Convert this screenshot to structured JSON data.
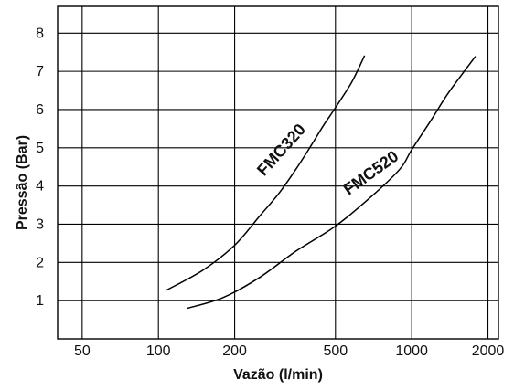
{
  "chart_data": {
    "type": "line",
    "title": "",
    "xlabel": "Vazão (l/min)",
    "ylabel": "Pressão (Bar)",
    "xscale": "log",
    "xlim": [
      40,
      2200
    ],
    "ylim": [
      0,
      8.7
    ],
    "grid": true,
    "xticks": [
      50,
      100,
      200,
      500,
      1000,
      2000
    ],
    "xtick_labels": [
      "50",
      "100",
      "200",
      "500",
      "1000",
      "2000"
    ],
    "yticks": [
      1,
      2,
      3,
      4,
      5,
      6,
      7,
      8
    ],
    "ytick_labels": [
      "1",
      "2",
      "3",
      "4",
      "5",
      "6",
      "7",
      "8"
    ],
    "series": [
      {
        "name": "FMC320",
        "color": "#000000",
        "points": [
          [
            108,
            1.28
          ],
          [
            150,
            1.8
          ],
          [
            200,
            2.45
          ],
          [
            250,
            3.2
          ],
          [
            300,
            3.82
          ],
          [
            350,
            4.45
          ],
          [
            400,
            5.05
          ],
          [
            450,
            5.6
          ],
          [
            500,
            6.05
          ],
          [
            580,
            6.72
          ],
          [
            650,
            7.4
          ]
        ]
      },
      {
        "name": "FMC520",
        "color": "#000000",
        "points": [
          [
            130,
            0.8
          ],
          [
            180,
            1.08
          ],
          [
            250,
            1.6
          ],
          [
            350,
            2.3
          ],
          [
            500,
            2.95
          ],
          [
            700,
            3.75
          ],
          [
            900,
            4.45
          ],
          [
            1000,
            4.95
          ],
          [
            1200,
            5.75
          ],
          [
            1400,
            6.45
          ],
          [
            1780,
            7.38
          ]
        ]
      }
    ],
    "legend": "none"
  }
}
